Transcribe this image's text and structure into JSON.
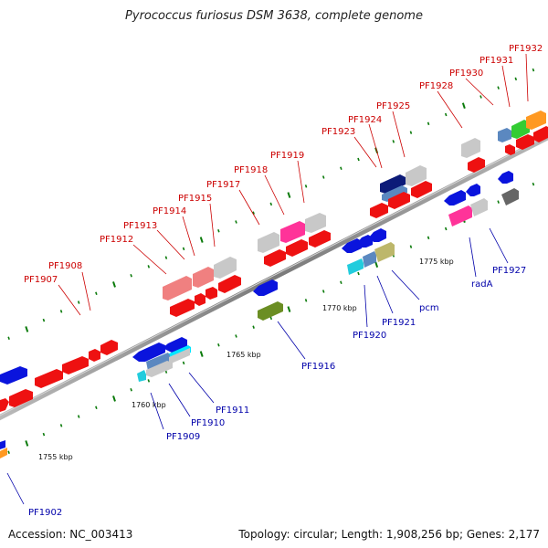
{
  "title": "Pyrococcus furiosus DSM 3638, complete genome",
  "footer": {
    "accession": "Accession: NC_003413",
    "summary": "Topology: circular; Length: 1,908,256 bp; Genes: 2,177"
  },
  "colors": {
    "red": "#ee1111",
    "pink": "#f08080",
    "magenta": "#ff3399",
    "blue": "#0a14dd",
    "navy": "#0c1a78",
    "cyan": "#22ccdd",
    "olive": "#6b8e23",
    "gray": "#c8c8c8",
    "darkgray": "#666666",
    "green": "#33cc33",
    "orange": "#ff9922",
    "steel": "#5b88c0",
    "khaki": "#bdb76b",
    "label_top": "#cc0000",
    "label_bottom": "#0000aa",
    "tick": "#0a7a0a",
    "backbone": "#8a8a8a"
  },
  "scale_labels": [
    {
      "text": "1755 kbp"
    },
    {
      "text": "1760 kbp"
    },
    {
      "text": "1765 kbp"
    },
    {
      "text": "1770 kbp"
    },
    {
      "text": "1775 kbp"
    }
  ],
  "gene_labels": [
    {
      "text": "PF1907",
      "side": "top"
    },
    {
      "text": "PF1908",
      "side": "top"
    },
    {
      "text": "PF1912",
      "side": "top"
    },
    {
      "text": "PF1913",
      "side": "top"
    },
    {
      "text": "PF1914",
      "side": "top"
    },
    {
      "text": "PF1915",
      "side": "top"
    },
    {
      "text": "PF1917",
      "side": "top"
    },
    {
      "text": "PF1918",
      "side": "top"
    },
    {
      "text": "PF1919",
      "side": "top"
    },
    {
      "text": "PF1923",
      "side": "top"
    },
    {
      "text": "PF1924",
      "side": "top"
    },
    {
      "text": "PF1925",
      "side": "top"
    },
    {
      "text": "PF1928",
      "side": "top"
    },
    {
      "text": "PF1930",
      "side": "top"
    },
    {
      "text": "PF1931",
      "side": "top"
    },
    {
      "text": "PF1932",
      "side": "top"
    },
    {
      "text": "PF1902",
      "side": "bottom"
    },
    {
      "text": "PF1909",
      "side": "bottom"
    },
    {
      "text": "PF1910",
      "side": "bottom"
    },
    {
      "text": "PF1911",
      "side": "bottom"
    },
    {
      "text": "PF1916",
      "side": "bottom"
    },
    {
      "text": "PF1920",
      "side": "bottom"
    },
    {
      "text": "PF1921",
      "side": "bottom"
    },
    {
      "text": "pcm",
      "side": "bottom"
    },
    {
      "text": "radA",
      "side": "bottom"
    },
    {
      "text": "PF1927",
      "side": "bottom"
    }
  ]
}
